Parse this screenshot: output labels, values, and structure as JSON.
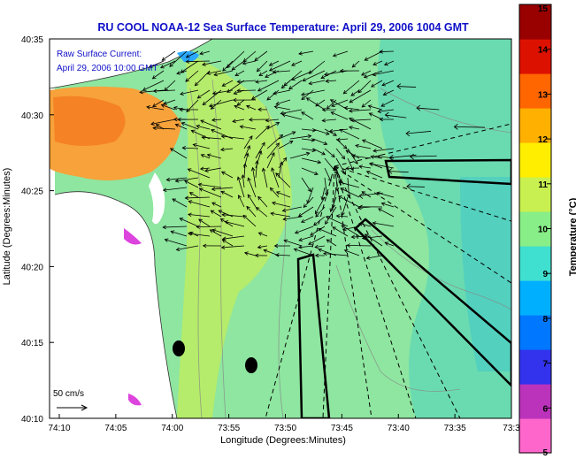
{
  "title": "RU COOL  NOAA-12  Sea Surface Temperature:  April 29, 2006 1004 GMT",
  "annotation_line1": "Raw Surface Current:",
  "annotation_line2": "April 29, 2006 10:00 GMT",
  "x_axis_label": "Longitude (Degrees:Minutes)",
  "y_axis_label": "Latitude (Degrees:Minutes)",
  "x_ticks": [
    "74:10",
    "74:05",
    "74:00",
    "73:55",
    "73:50",
    "73:45",
    "73:40",
    "73:35",
    "73:3"
  ],
  "y_ticks": [
    "40:35",
    "40:30",
    "40:25",
    "40:20",
    "40:15",
    "40:10"
  ],
  "scale_label": "50 cm/s",
  "colorbar": {
    "label": "Temperature (°C)",
    "ticks": [
      "15",
      "14",
      "13",
      "12",
      "11",
      "10",
      "9",
      "8",
      "7",
      "6",
      "5"
    ],
    "colors": [
      "#ff66cc",
      "#bb33bb",
      "#3333ee",
      "#0077ff",
      "#00b0ff",
      "#40e0d0",
      "#88ee88",
      "#c8f050",
      "#ffee00",
      "#ffb000",
      "#ff6600",
      "#dd1100",
      "#990000"
    ]
  },
  "palette": {
    "land": "#ffffff",
    "water": "#8ee6a0",
    "warm_bay": "#f7a23a",
    "title": "#1010c8"
  }
}
